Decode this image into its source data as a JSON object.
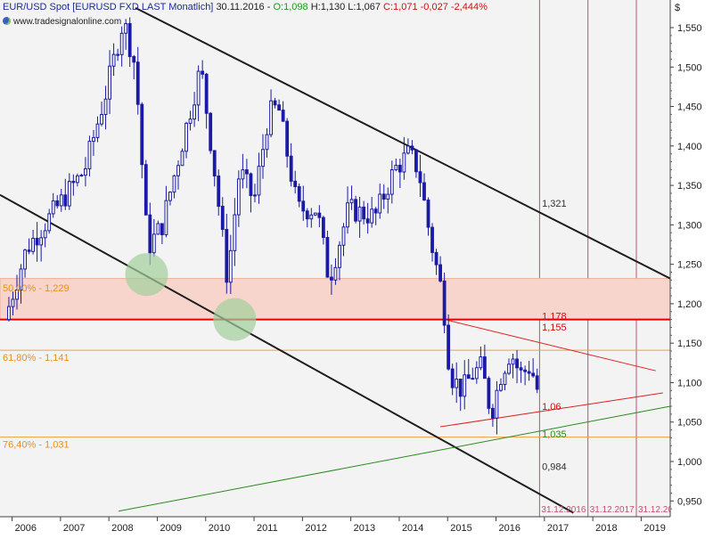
{
  "header": {
    "instrument": "EUR/USD Spot [EURUSD FXD LAST Monatlich]",
    "date": "30.11.2016",
    "open": "O:1,098",
    "high": "H:1,130",
    "low": "L:1,067",
    "close": "C:1,071",
    "change": "-0,027",
    "change_pct": "-2,444%",
    "website": "www.tradesignalonline.com"
  },
  "colors": {
    "candle": "#1a1aa6",
    "channel": "#1c1c1c",
    "support_zone": "#f8d5cc",
    "support_zone_border": "#f0b090",
    "key_level": "#e00000",
    "fib_line": "#f0a040",
    "fib_text": "#e39020",
    "triangle": "#e02020",
    "trend_up": "#2a8a1f",
    "circle": "#9fcf9a",
    "vline": "#c05070",
    "background": "#f3f3f3"
  },
  "chart_data": {
    "type": "candlestick",
    "title": "EUR/USD Spot [EURUSD FXD LAST Monatlich]",
    "xlabel": "",
    "ylabel": "$",
    "y_axis_unit": "$",
    "ylim": [
      0.93,
      1.585
    ],
    "xlim": [
      2005.75,
      2019.6
    ],
    "x_ticks": [
      "2006",
      "2007",
      "2008",
      "2009",
      "2010",
      "2011",
      "2012",
      "2013",
      "2014",
      "2015",
      "2016",
      "2017",
      "2018",
      "2019"
    ],
    "y_ticks": [
      "1,550",
      "1,500",
      "1,450",
      "1,400",
      "1,350",
      "1,300",
      "1,250",
      "1,200",
      "1,150",
      "1,100",
      "1,050",
      "1,000",
      "0,950"
    ],
    "y_tick_values": [
      1.55,
      1.5,
      1.45,
      1.4,
      1.35,
      1.3,
      1.25,
      1.2,
      1.15,
      1.1,
      1.05,
      1.0,
      0.95
    ],
    "anchors": [
      {
        "t": 2005.85,
        "c": 1.18
      },
      {
        "t": 2006.3,
        "c": 1.27
      },
      {
        "t": 2006.9,
        "c": 1.32
      },
      {
        "t": 2007.5,
        "c": 1.37
      },
      {
        "t": 2007.95,
        "c": 1.47
      },
      {
        "t": 2008.3,
        "c": 1.56
      },
      {
        "t": 2008.55,
        "c": 1.5
      },
      {
        "t": 2008.8,
        "c": 1.27
      },
      {
        "t": 2009.1,
        "c": 1.3
      },
      {
        "t": 2009.5,
        "c": 1.4
      },
      {
        "t": 2009.9,
        "c": 1.5
      },
      {
        "t": 2010.2,
        "c": 1.36
      },
      {
        "t": 2010.45,
        "c": 1.23
      },
      {
        "t": 2010.7,
        "c": 1.37
      },
      {
        "t": 2011.0,
        "c": 1.33
      },
      {
        "t": 2011.3,
        "c": 1.44
      },
      {
        "t": 2011.5,
        "c": 1.45
      },
      {
        "t": 2011.9,
        "c": 1.32
      },
      {
        "t": 2012.3,
        "c": 1.32
      },
      {
        "t": 2012.55,
        "c": 1.23
      },
      {
        "t": 2012.95,
        "c": 1.32
      },
      {
        "t": 2013.5,
        "c": 1.31
      },
      {
        "t": 2013.9,
        "c": 1.37
      },
      {
        "t": 2014.2,
        "c": 1.39
      },
      {
        "t": 2014.4,
        "c": 1.37
      },
      {
        "t": 2014.65,
        "c": 1.28
      },
      {
        "t": 2014.9,
        "c": 1.21
      },
      {
        "t": 2015.05,
        "c": 1.11
      },
      {
        "t": 2015.3,
        "c": 1.09
      },
      {
        "t": 2015.5,
        "c": 1.11
      },
      {
        "t": 2015.7,
        "c": 1.12
      },
      {
        "t": 2015.9,
        "c": 1.06
      },
      {
        "t": 2016.1,
        "c": 1.11
      },
      {
        "t": 2016.3,
        "c": 1.14
      },
      {
        "t": 2016.5,
        "c": 1.11
      },
      {
        "t": 2016.7,
        "c": 1.12
      },
      {
        "t": 2016.83,
        "c": 1.1
      },
      {
        "t": 2016.9,
        "c": 1.071
      }
    ],
    "last_bar": {
      "date": "30.11.2016",
      "open": 1.098,
      "high": 1.13,
      "low": 1.067,
      "close": 1.071
    },
    "channel_lines": [
      {
        "p1": [
          2008.55,
          1.575
        ],
        "p2": [
          2019.6,
          1.232
        ]
      },
      {
        "p1": [
          2005.75,
          1.338
        ],
        "p2": [
          2017.6,
          0.935
        ]
      }
    ],
    "support_zone": {
      "y_top": 1.232,
      "y_bottom": 1.18
    },
    "key_level": 1.18,
    "fib_levels": [
      {
        "label": "50,00% - 1,229",
        "value": 1.229
      },
      {
        "label": "61,80% - 1,141",
        "value": 1.141
      },
      {
        "label": "76,40% - 1,031",
        "value": 1.031
      }
    ],
    "triangle_lines": [
      {
        "p1": [
          2015.0,
          1.179
        ],
        "p2": [
          2019.3,
          1.115
        ]
      },
      {
        "p1": [
          2014.85,
          1.044
        ],
        "p2": [
          2019.45,
          1.087
        ]
      }
    ],
    "trend_line_up": {
      "p1": [
        2008.2,
        0.937
      ],
      "p2": [
        2019.6,
        1.07
      ]
    },
    "circles": [
      {
        "t": 2008.78,
        "y": 1.237
      },
      {
        "t": 2010.6,
        "y": 1.18
      }
    ],
    "vertical_markers": [
      {
        "t": 2016.9,
        "label": "31.12.2016"
      },
      {
        "t": 2017.9,
        "label": "31.12.2017"
      },
      {
        "t": 2018.9,
        "label": "31.12.20"
      }
    ],
    "projection_labels": [
      {
        "text": "1,321",
        "t": 2016.95,
        "y": 1.321,
        "color": "#303030"
      },
      {
        "text": "1,178",
        "t": 2016.95,
        "y": 1.178,
        "color": "#d01010"
      },
      {
        "text": "1,155",
        "t": 2016.95,
        "y": 1.164,
        "color": "#d01010"
      },
      {
        "text": "1,06",
        "t": 2016.95,
        "y": 1.063,
        "color": "#d01010"
      },
      {
        "text": "1,035",
        "t": 2016.95,
        "y": 1.028,
        "color": "#2a8a1f"
      },
      {
        "text": "0,984",
        "t": 2016.95,
        "y": 0.987,
        "color": "#303030"
      }
    ]
  }
}
